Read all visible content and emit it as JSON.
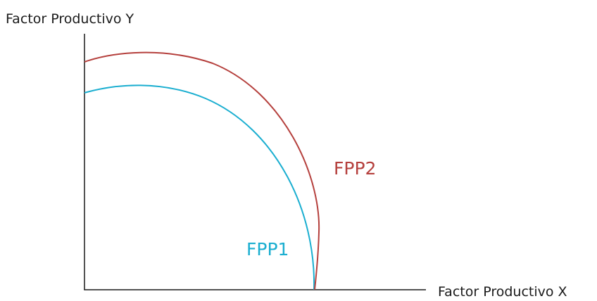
{
  "axes": {
    "y_label": "Factor Productivo Y",
    "x_label": "Factor Productivo X"
  },
  "curves": [
    {
      "label": "FPP1",
      "color": "#1aaed0"
    },
    {
      "label": "FPP2",
      "color": "#b5403d"
    }
  ]
}
